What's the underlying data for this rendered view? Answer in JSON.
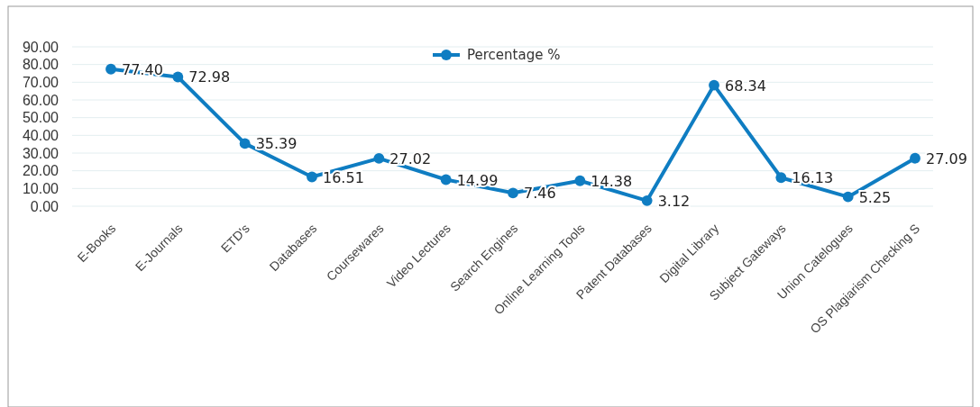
{
  "chart_data": {
    "type": "line",
    "categories": [
      "E-Books",
      "E-Journals",
      "ETD's",
      "Databases",
      "Coursewares",
      "Video Lectures",
      "Search Engines",
      "Online Learning Tools",
      "Patent Databases",
      "Digital Library",
      "Subject Gateways",
      "Union Catelogues",
      "OS Plagiarism Checking S"
    ],
    "series": [
      {
        "name": "Percentage %",
        "color": "#0f7dc2",
        "values": [
          77.4,
          72.98,
          35.39,
          16.51,
          27.02,
          14.99,
          7.46,
          14.38,
          3.12,
          68.34,
          16.13,
          5.25,
          27.09
        ],
        "value_labels": [
          "77.40",
          "72.98",
          "35.39",
          "16.51",
          "27.02",
          "14.99",
          "7.46",
          "14.38",
          "3.12",
          "68.34",
          "16.13",
          "5.25",
          "27.09"
        ]
      }
    ],
    "ylim": [
      0,
      90
    ],
    "yticks": [
      {
        "value": 0,
        "label": "0.00"
      },
      {
        "value": 10,
        "label": "10.00"
      },
      {
        "value": 20,
        "label": "20.00"
      },
      {
        "value": 30,
        "label": "30.00"
      },
      {
        "value": 40,
        "label": "40.00"
      },
      {
        "value": 50,
        "label": "50.00"
      },
      {
        "value": 60,
        "label": "60.00"
      },
      {
        "value": 70,
        "label": "70.00"
      },
      {
        "value": 80,
        "label": "80.00"
      },
      {
        "value": 90,
        "label": "90.00"
      }
    ],
    "grid": "y",
    "legend": "top",
    "marker": "circle",
    "line_style": "solid"
  }
}
